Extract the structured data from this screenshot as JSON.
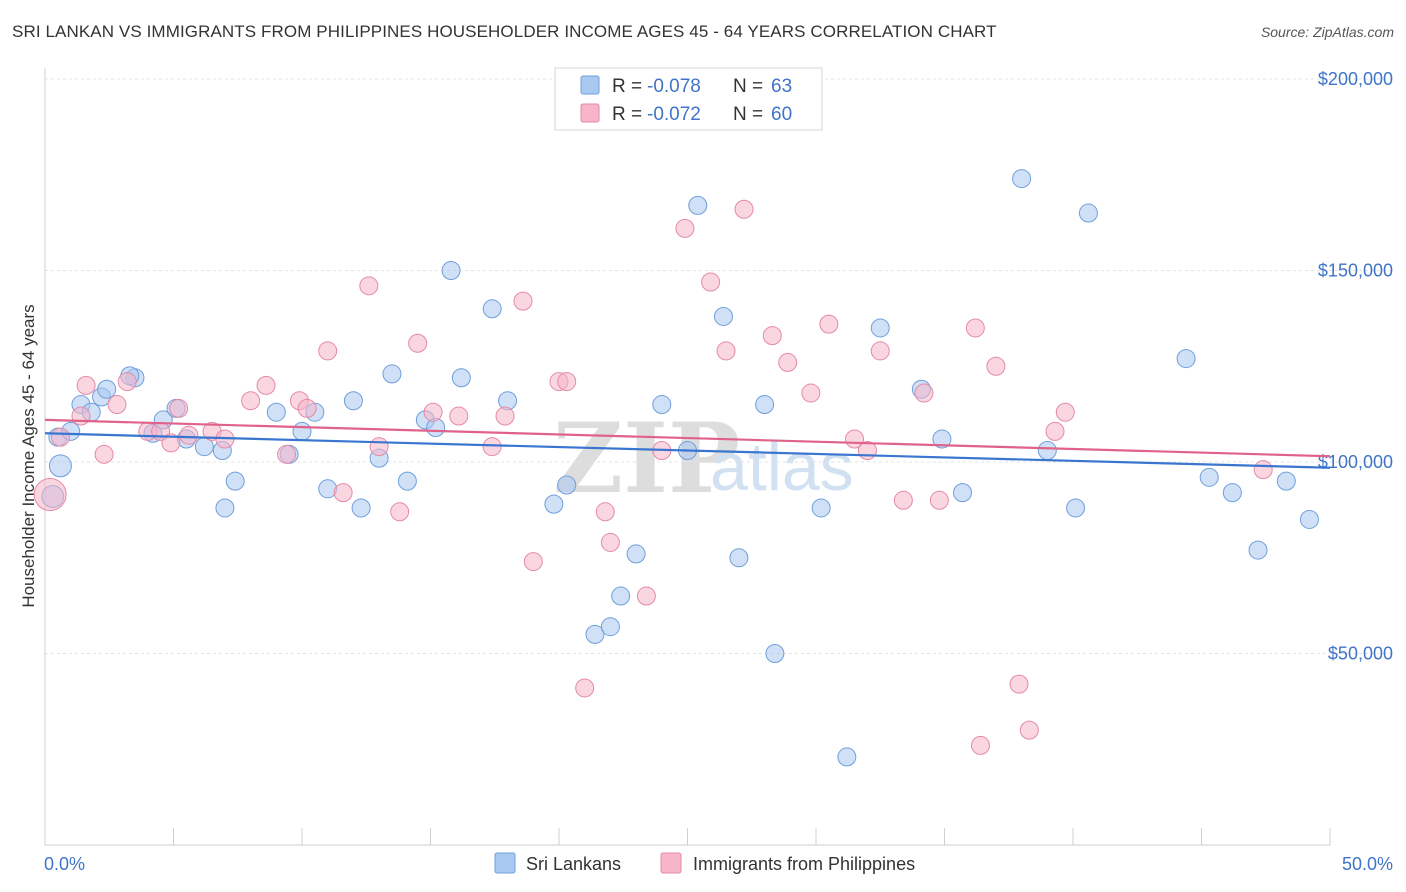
{
  "title": "SRI LANKAN VS IMMIGRANTS FROM PHILIPPINES HOUSEHOLDER INCOME AGES 45 - 64 YEARS CORRELATION CHART",
  "source": "Source: ZipAtlas.com",
  "watermark": {
    "zip": "ZIP",
    "atlas": "atlas"
  },
  "legend": {
    "rows": [
      {
        "r_label": "R =",
        "r_value": "-0.078",
        "n_label": "N =",
        "n_value": "63",
        "color": "#a9c8f0"
      },
      {
        "r_label": "R =",
        "r_value": "-0.072",
        "n_label": "N =",
        "n_value": "60",
        "color": "#f6b5c8"
      }
    ]
  },
  "bottom_legend": [
    "Sri Lankans",
    "Immigrants from Philippines"
  ],
  "chart_data": {
    "type": "scatter",
    "title": "SRI LANKAN VS IMMIGRANTS FROM PHILIPPINES HOUSEHOLDER INCOME AGES 45 - 64 YEARS CORRELATION CHART",
    "xlabel": "",
    "ylabel": "Householder Income Ages 45 - 64 years",
    "xlim": [
      0,
      50
    ],
    "ylim": [
      0,
      210000
    ],
    "x_tick_labels": [
      "0.0%",
      "50.0%"
    ],
    "y_ticks": [
      50000,
      100000,
      150000,
      200000
    ],
    "y_tick_labels": [
      "$50,000",
      "$100,000",
      "$150,000",
      "$200,000"
    ],
    "grid": true,
    "series": [
      {
        "name": "Sri Lankans",
        "color": "#a9c8f0",
        "stroke": "#6f9fdc",
        "trend_color": "#3a76d0",
        "trend": [
          [
            0,
            107500
          ],
          [
            50,
            98500
          ]
        ],
        "points": [
          [
            0.5,
            106500
          ],
          [
            0.6,
            99000
          ],
          [
            1.0,
            108000
          ],
          [
            1.4,
            115000
          ],
          [
            1.8,
            113000
          ],
          [
            2.2,
            117000
          ],
          [
            2.4,
            119000
          ],
          [
            3.5,
            122000
          ],
          [
            3.3,
            122500
          ],
          [
            4.2,
            107500
          ],
          [
            4.6,
            111000
          ],
          [
            5.1,
            114000
          ],
          [
            5.5,
            106000
          ],
          [
            6.2,
            104000
          ],
          [
            6.9,
            103000
          ],
          [
            7.4,
            95000
          ],
          [
            7.0,
            88000
          ],
          [
            9.0,
            113000
          ],
          [
            9.5,
            102000
          ],
          [
            10.0,
            108000
          ],
          [
            10.5,
            113000
          ],
          [
            11.0,
            93000
          ],
          [
            12.0,
            116000
          ],
          [
            12.3,
            88000
          ],
          [
            13.0,
            101000
          ],
          [
            13.5,
            123000
          ],
          [
            14.1,
            95000
          ],
          [
            14.8,
            111000
          ],
          [
            15.2,
            109000
          ],
          [
            15.8,
            150000
          ],
          [
            16.2,
            122000
          ],
          [
            17.4,
            140000
          ],
          [
            18.0,
            116000
          ],
          [
            19.8,
            89000
          ],
          [
            20.3,
            94000
          ],
          [
            21.4,
            55000
          ],
          [
            22.0,
            57000
          ],
          [
            22.4,
            65000
          ],
          [
            23.0,
            76000
          ],
          [
            24.0,
            115000
          ],
          [
            25.0,
            103000
          ],
          [
            25.4,
            167000
          ],
          [
            26.4,
            138000
          ],
          [
            27.0,
            75000
          ],
          [
            28.0,
            115000
          ],
          [
            28.4,
            50000
          ],
          [
            30.2,
            88000
          ],
          [
            31.2,
            23000
          ],
          [
            32.5,
            135000
          ],
          [
            34.1,
            119000
          ],
          [
            34.9,
            106000
          ],
          [
            35.7,
            92000
          ],
          [
            38.0,
            174000
          ],
          [
            39.0,
            103000
          ],
          [
            40.1,
            88000
          ],
          [
            40.6,
            165000
          ],
          [
            44.4,
            127000
          ],
          [
            45.3,
            96000
          ],
          [
            46.2,
            92000
          ],
          [
            47.2,
            77000
          ],
          [
            48.3,
            95000
          ],
          [
            49.2,
            85000
          ],
          [
            0.3,
            91000
          ]
        ]
      },
      {
        "name": "Immigrants from Philippines",
        "color": "#f6b5c8",
        "stroke": "#e58aa6",
        "trend_color": "#e0628a",
        "trend": [
          [
            0,
            111000
          ],
          [
            50,
            101500
          ]
        ],
        "points": [
          [
            0.2,
            91500
          ],
          [
            0.6,
            106500
          ],
          [
            1.4,
            112000
          ],
          [
            1.6,
            120000
          ],
          [
            2.3,
            102000
          ],
          [
            2.8,
            115000
          ],
          [
            3.2,
            121000
          ],
          [
            4.0,
            108000
          ],
          [
            4.5,
            108000
          ],
          [
            4.9,
            105000
          ],
          [
            5.2,
            114000
          ],
          [
            5.6,
            107000
          ],
          [
            6.5,
            108000
          ],
          [
            7.0,
            106000
          ],
          [
            8.0,
            116000
          ],
          [
            8.6,
            120000
          ],
          [
            9.4,
            102000
          ],
          [
            9.9,
            116000
          ],
          [
            10.2,
            114000
          ],
          [
            11.0,
            129000
          ],
          [
            11.6,
            92000
          ],
          [
            12.6,
            146000
          ],
          [
            13.0,
            104000
          ],
          [
            13.8,
            87000
          ],
          [
            14.5,
            131000
          ],
          [
            15.1,
            113000
          ],
          [
            16.1,
            112000
          ],
          [
            17.4,
            104000
          ],
          [
            17.9,
            112000
          ],
          [
            18.6,
            142000
          ],
          [
            19.0,
            74000
          ],
          [
            20.0,
            121000
          ],
          [
            20.3,
            121000
          ],
          [
            21.0,
            41000
          ],
          [
            21.8,
            87000
          ],
          [
            22.0,
            79000
          ],
          [
            23.4,
            65000
          ],
          [
            24.0,
            103000
          ],
          [
            24.9,
            161000
          ],
          [
            25.9,
            147000
          ],
          [
            26.5,
            129000
          ],
          [
            27.2,
            166000
          ],
          [
            28.3,
            133000
          ],
          [
            28.9,
            126000
          ],
          [
            29.8,
            118000
          ],
          [
            30.5,
            136000
          ],
          [
            31.5,
            106000
          ],
          [
            32.0,
            103000
          ],
          [
            32.5,
            129000
          ],
          [
            33.4,
            90000
          ],
          [
            34.2,
            118000
          ],
          [
            34.8,
            90000
          ],
          [
            36.2,
            135000
          ],
          [
            36.4,
            26000
          ],
          [
            37.0,
            125000
          ],
          [
            37.9,
            42000
          ],
          [
            38.3,
            30000
          ],
          [
            39.3,
            108000
          ],
          [
            39.7,
            113000
          ],
          [
            47.4,
            98000
          ]
        ]
      }
    ]
  }
}
